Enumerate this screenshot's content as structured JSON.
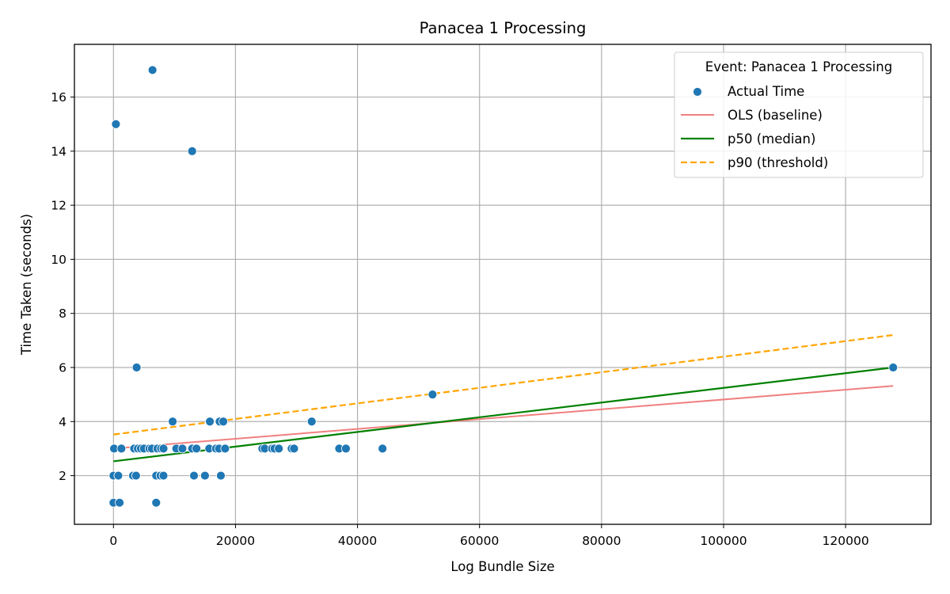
{
  "chart_data": {
    "type": "scatter",
    "title": "Panacea 1 Processing",
    "xlabel": "Log Bundle Size",
    "ylabel": "Time Taken (seconds)",
    "xlim": [
      -6400,
      134000
    ],
    "ylim": [
      0.2,
      17.95
    ],
    "xticks": [
      0,
      20000,
      40000,
      60000,
      80000,
      100000,
      120000
    ],
    "yticks": [
      2,
      4,
      6,
      8,
      10,
      12,
      14,
      16
    ],
    "grid": true,
    "legend": {
      "title": "Event: Panacea 1 Processing",
      "placement": "top-right",
      "entries": [
        "Actual Time",
        "OLS (baseline)",
        "p50 (median)",
        "p90 (threshold)"
      ]
    },
    "colors": {
      "points": "#1f77b4",
      "ols": "#f08080",
      "p50": "#008000",
      "p90": "#ffa500"
    },
    "series": [
      {
        "name": "Actual Time",
        "kind": "points",
        "points": [
          [
            0,
            1
          ],
          [
            1000,
            1
          ],
          [
            7000,
            1
          ],
          [
            0,
            2
          ],
          [
            800,
            2
          ],
          [
            3200,
            2
          ],
          [
            3700,
            2
          ],
          [
            7000,
            2
          ],
          [
            7700,
            2
          ],
          [
            8200,
            2
          ],
          [
            13200,
            2
          ],
          [
            15000,
            2
          ],
          [
            17600,
            2
          ],
          [
            100,
            3
          ],
          [
            1300,
            3
          ],
          [
            3400,
            3
          ],
          [
            4000,
            3
          ],
          [
            4500,
            3
          ],
          [
            5000,
            3
          ],
          [
            5900,
            3
          ],
          [
            6300,
            3
          ],
          [
            7200,
            3
          ],
          [
            7800,
            3
          ],
          [
            8200,
            3
          ],
          [
            10300,
            3
          ],
          [
            11300,
            3
          ],
          [
            12900,
            3
          ],
          [
            13600,
            3
          ],
          [
            15700,
            3
          ],
          [
            16800,
            3
          ],
          [
            17300,
            3
          ],
          [
            18300,
            3
          ],
          [
            24400,
            3
          ],
          [
            24800,
            3
          ],
          [
            26000,
            3
          ],
          [
            26400,
            3
          ],
          [
            27100,
            3
          ],
          [
            29200,
            3
          ],
          [
            29600,
            3
          ],
          [
            37000,
            3
          ],
          [
            38100,
            3
          ],
          [
            44100,
            3
          ],
          [
            9700,
            4
          ],
          [
            15800,
            4
          ],
          [
            17400,
            4
          ],
          [
            18000,
            4
          ],
          [
            32500,
            4
          ],
          [
            52300,
            5
          ],
          [
            3800,
            6
          ],
          [
            127800,
            6
          ],
          [
            12900,
            14
          ],
          [
            400,
            15
          ],
          [
            6400,
            17
          ]
        ]
      },
      {
        "name": "OLS (baseline)",
        "kind": "line",
        "x": [
          0,
          127800
        ],
        "y": [
          3.0,
          5.32
        ]
      },
      {
        "name": "p50 (median)",
        "kind": "line",
        "x": [
          0,
          127800
        ],
        "y": [
          2.53,
          6.0
        ]
      },
      {
        "name": "p90 (threshold)",
        "kind": "dashed-line",
        "x": [
          0,
          127800
        ],
        "y": [
          3.52,
          7.2
        ]
      }
    ]
  }
}
